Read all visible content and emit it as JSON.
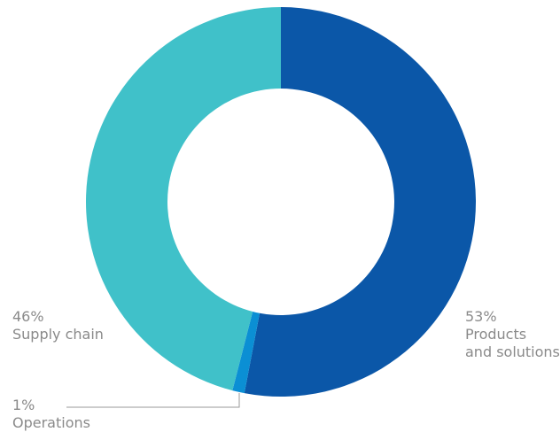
{
  "chart_data": {
    "type": "pie",
    "style": "donut",
    "title": "",
    "slices": [
      {
        "label": "Products and solutions",
        "label_lines": [
          "Products",
          "and solutions"
        ],
        "value": 53,
        "value_text": "53%",
        "color": "#0b57a8"
      },
      {
        "label": "Operations",
        "label_lines": [
          "Operations"
        ],
        "value": 1,
        "value_text": "1%",
        "color": "#0b8fd4"
      },
      {
        "label": "Supply chain",
        "label_lines": [
          "Supply chain"
        ],
        "value": 46,
        "value_text": "46%",
        "color": "#40c1c9"
      }
    ],
    "label_color": "#8a8a8a",
    "leader_color": "#9a9a9a"
  }
}
